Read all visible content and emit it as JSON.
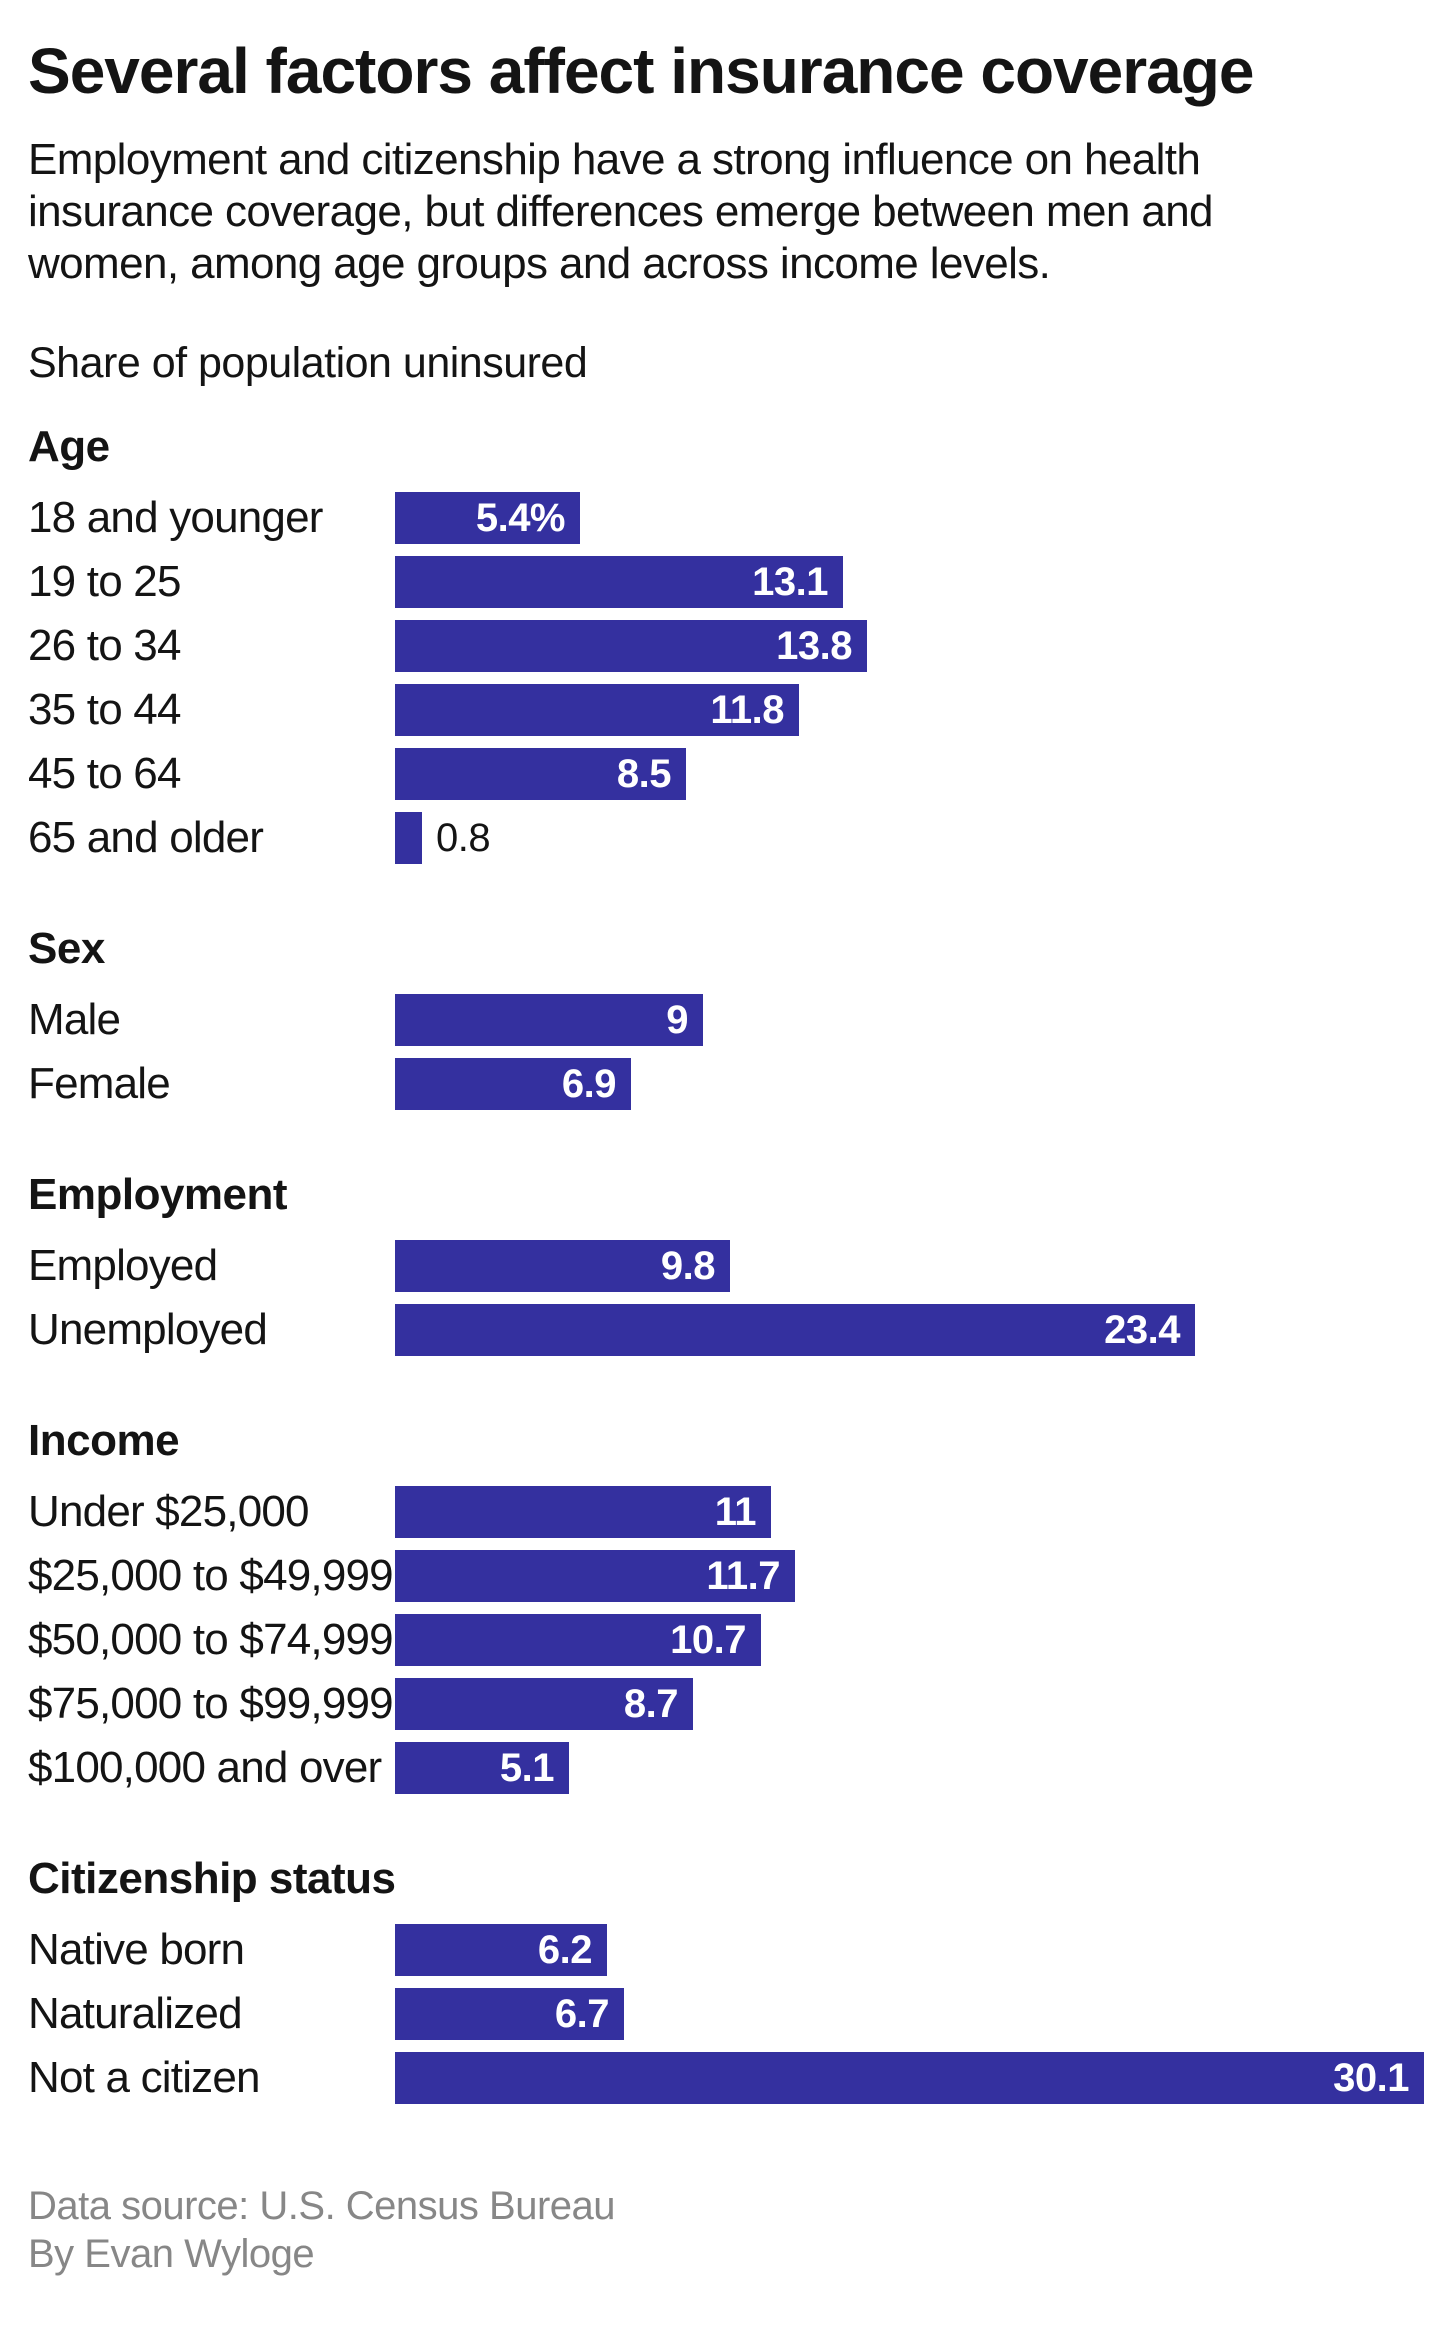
{
  "header": {
    "title": "Several factors affect insurance coverage",
    "subtitle": "Employment and citizenship have a strong influence on health insurance coverage, but differences emerge between men and women, among age groups and across income levels.",
    "caption": "Share of population uninsured"
  },
  "chart_data": {
    "type": "bar",
    "orientation": "horizontal",
    "title": "Several factors affect insurance coverage",
    "subtitle": "Employment and citizenship have a strong influence on health insurance coverage, but differences emerge between men and women, among age groups and across income levels.",
    "value_caption": "Share of population uninsured",
    "unit": "percent of population uninsured",
    "xlim": [
      0,
      30.1
    ],
    "grid": false,
    "legend": "none",
    "bar_color": "#34309f",
    "inside_label_color": "#ffffff",
    "outside_label_color": "#141414",
    "sections": [
      {
        "title": "Age",
        "rows": [
          {
            "label": "18 and younger",
            "value": 5.4,
            "display": "5.4%"
          },
          {
            "label": "19 to 25",
            "value": 13.1,
            "display": "13.1"
          },
          {
            "label": "26 to 34",
            "value": 13.8,
            "display": "13.8"
          },
          {
            "label": "35 to 44",
            "value": 11.8,
            "display": "11.8"
          },
          {
            "label": "45 to 64",
            "value": 8.5,
            "display": "8.5"
          },
          {
            "label": "65 and older",
            "value": 0.8,
            "display": "0.8"
          }
        ]
      },
      {
        "title": "Sex",
        "rows": [
          {
            "label": "Male",
            "value": 9,
            "display": "9"
          },
          {
            "label": "Female",
            "value": 6.9,
            "display": "6.9"
          }
        ]
      },
      {
        "title": "Employment",
        "rows": [
          {
            "label": "Employed",
            "value": 9.8,
            "display": "9.8"
          },
          {
            "label": "Unemployed",
            "value": 23.4,
            "display": "23.4"
          }
        ]
      },
      {
        "title": "Income",
        "rows": [
          {
            "label": "Under $25,000",
            "value": 11,
            "display": "11"
          },
          {
            "label": "$25,000 to $49,999",
            "value": 11.7,
            "display": "11.7"
          },
          {
            "label": "$50,000 to $74,999",
            "value": 10.7,
            "display": "10.7"
          },
          {
            "label": "$75,000 to $99,999",
            "value": 8.7,
            "display": "8.7"
          },
          {
            "label": "$100,000 and over",
            "value": 5.1,
            "display": "5.1"
          }
        ]
      },
      {
        "title": "Citizenship status",
        "rows": [
          {
            "label": "Native born",
            "value": 6.2,
            "display": "6.2"
          },
          {
            "label": "Naturalized",
            "value": 6.7,
            "display": "6.7"
          },
          {
            "label": "Not a citizen",
            "value": 30.1,
            "display": "30.1"
          }
        ]
      }
    ]
  },
  "footer": {
    "source": "Data source: U.S. Census Bureau",
    "byline": "By Evan Wyloge"
  },
  "colors": {
    "bar": "#34309f",
    "text": "#141414",
    "muted": "#878787",
    "background": "#ffffff"
  }
}
